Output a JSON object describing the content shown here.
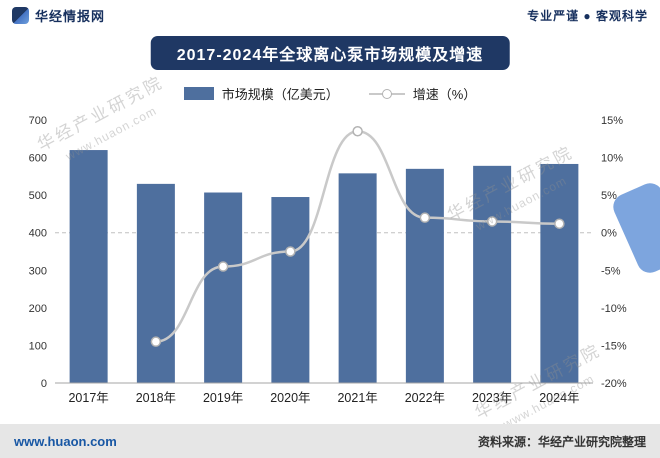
{
  "header": {
    "brand": "华经情报网",
    "slogan": "专业严谨 ● 客观科学"
  },
  "title": "2017-2024年全球离心泵市场规模及增速",
  "legend": {
    "bar_label": "市场规模（亿美元）",
    "line_label": "增速（%）"
  },
  "watermark": {
    "line1": "华经产业研究院",
    "line2": "www.huaon.com"
  },
  "footer": {
    "site": "www.huaon.com",
    "source": "资料来源：华经产业研究院整理"
  },
  "colors": {
    "bar": "#4e6f9e",
    "title_bg": "#1f3864",
    "line": "#c9c9c9",
    "marker_fill": "#ffffff",
    "marker_stroke": "#b3b3b3",
    "axis": "#a6a6a6",
    "grid_dash": "#c0c0c0"
  },
  "chart_data": {
    "type": "bar",
    "title": "2017-2024年全球离心泵市场规模及增速",
    "categories": [
      "2017年",
      "2018年",
      "2019年",
      "2020年",
      "2021年",
      "2022年",
      "2023年",
      "2024年"
    ],
    "series": [
      {
        "name": "市场规模（亿美元）",
        "type": "bar",
        "values": [
          620,
          530,
          507,
          495,
          558,
          570,
          578,
          583
        ]
      },
      {
        "name": "增速（%）",
        "type": "line",
        "values": [
          null,
          -14.5,
          -4.5,
          -2.5,
          13.5,
          2.0,
          1.5,
          1.2
        ]
      }
    ],
    "left_axis": {
      "min": 0,
      "max": 700,
      "step": 100,
      "ticks": [
        "0",
        "100",
        "200",
        "300",
        "400",
        "500",
        "600",
        "700"
      ]
    },
    "right_axis": {
      "min": -20,
      "max": 15,
      "step": 5,
      "ticks": [
        "-20%",
        "-15%",
        "-10%",
        "-5%",
        "0%",
        "5%",
        "10%",
        "15%"
      ]
    },
    "grid": "dashed zero line only",
    "legend_position": "top-center"
  }
}
